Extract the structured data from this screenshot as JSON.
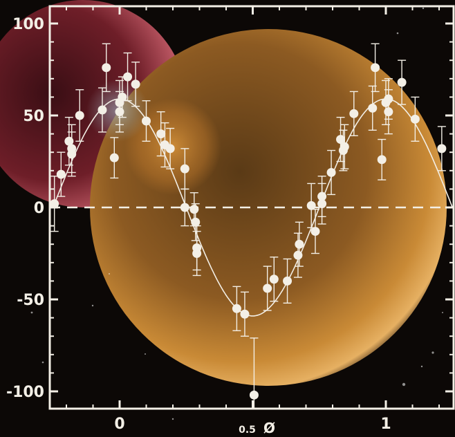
{
  "chart_data": {
    "type": "scatter",
    "title": "",
    "xlabel": "Ø",
    "ylabel": "",
    "xlim": [
      -0.25,
      1.25
    ],
    "ylim": [
      -107,
      107
    ],
    "grid": false,
    "zero_line": true,
    "x_ticks": [
      {
        "value": 0,
        "label": "0"
      },
      {
        "value": 0.5,
        "label": "0.5"
      },
      {
        "value": 1,
        "label": "1"
      }
    ],
    "y_ticks": [
      {
        "value": 100,
        "label": "100"
      },
      {
        "value": 50,
        "label": "50"
      },
      {
        "value": 0,
        "label": "0"
      },
      {
        "value": -50,
        "label": "-50"
      },
      {
        "value": -100,
        "label": "-100"
      }
    ],
    "fit_curve": {
      "type": "sinusoid",
      "amplitude": 59,
      "offset": 0,
      "peak_phase": 0
    },
    "series": [
      {
        "points": [
          {
            "x": -0.245,
            "y": 2,
            "err": 15
          },
          {
            "x": -0.22,
            "y": 18,
            "err": 12
          },
          {
            "x": -0.19,
            "y": 36,
            "err": 13
          },
          {
            "x": -0.18,
            "y": 32,
            "err": 13
          },
          {
            "x": -0.18,
            "y": 29,
            "err": 12
          },
          {
            "x": -0.15,
            "y": 50,
            "err": 14
          },
          {
            "x": -0.065,
            "y": 53,
            "err": 12
          },
          {
            "x": -0.05,
            "y": 76,
            "err": 13
          },
          {
            "x": -0.02,
            "y": 27,
            "err": 11
          },
          {
            "x": 0.0,
            "y": 57,
            "err": 12
          },
          {
            "x": 0.0,
            "y": 52,
            "err": 11
          },
          {
            "x": 0.01,
            "y": 60,
            "err": 11
          },
          {
            "x": 0.03,
            "y": 71,
            "err": 13
          },
          {
            "x": 0.06,
            "y": 67,
            "err": 12
          },
          {
            "x": 0.1,
            "y": 47,
            "err": 11
          },
          {
            "x": 0.155,
            "y": 40,
            "err": 12
          },
          {
            "x": 0.17,
            "y": 34,
            "err": 12
          },
          {
            "x": 0.19,
            "y": 32,
            "err": 11
          },
          {
            "x": 0.245,
            "y": 21,
            "err": 11
          },
          {
            "x": 0.245,
            "y": 0,
            "err": 10
          },
          {
            "x": 0.28,
            "y": -1,
            "err": 9
          },
          {
            "x": 0.285,
            "y": -8,
            "err": 10
          },
          {
            "x": 0.29,
            "y": -22,
            "err": 12
          },
          {
            "x": 0.29,
            "y": -25,
            "err": 12
          },
          {
            "x": 0.44,
            "y": -55,
            "err": 12
          },
          {
            "x": 0.47,
            "y": -58,
            "err": 12
          },
          {
            "x": 0.505,
            "y": -102,
            "err": 31
          },
          {
            "x": 0.555,
            "y": -44,
            "err": 12
          },
          {
            "x": 0.58,
            "y": -39,
            "err": 12
          },
          {
            "x": 0.63,
            "y": -40,
            "err": 12
          },
          {
            "x": 0.67,
            "y": -26,
            "err": 12
          },
          {
            "x": 0.675,
            "y": -20,
            "err": 12
          },
          {
            "x": 0.72,
            "y": 1,
            "err": 12
          },
          {
            "x": 0.735,
            "y": -13,
            "err": 12
          },
          {
            "x": 0.76,
            "y": 2,
            "err": 11
          },
          {
            "x": 0.76,
            "y": 6,
            "err": 11
          },
          {
            "x": 0.795,
            "y": 19,
            "err": 12
          },
          {
            "x": 0.83,
            "y": 37,
            "err": 12
          },
          {
            "x": 0.845,
            "y": 33,
            "err": 12
          },
          {
            "x": 0.84,
            "y": 31,
            "err": 11
          },
          {
            "x": 0.88,
            "y": 51,
            "err": 12
          },
          {
            "x": 0.95,
            "y": 54,
            "err": 12
          },
          {
            "x": 0.96,
            "y": 76,
            "err": 13
          },
          {
            "x": 0.985,
            "y": 26,
            "err": 11
          },
          {
            "x": 1.0,
            "y": 57,
            "err": 12
          },
          {
            "x": 1.01,
            "y": 52,
            "err": 12
          },
          {
            "x": 1.01,
            "y": 59,
            "err": 11
          },
          {
            "x": 1.06,
            "y": 68,
            "err": 12
          },
          {
            "x": 1.11,
            "y": 48,
            "err": 12
          },
          {
            "x": 1.21,
            "y": 32,
            "err": 12
          }
        ]
      }
    ],
    "colors": {
      "axes": "#f3efe6",
      "points": "#f3efe6",
      "fit_curve": "#f3efe6",
      "background_space": "#0c0806",
      "planet": "#c98a36",
      "planet_glow": "#e6b062",
      "companion_planet": "#a63a45"
    }
  }
}
